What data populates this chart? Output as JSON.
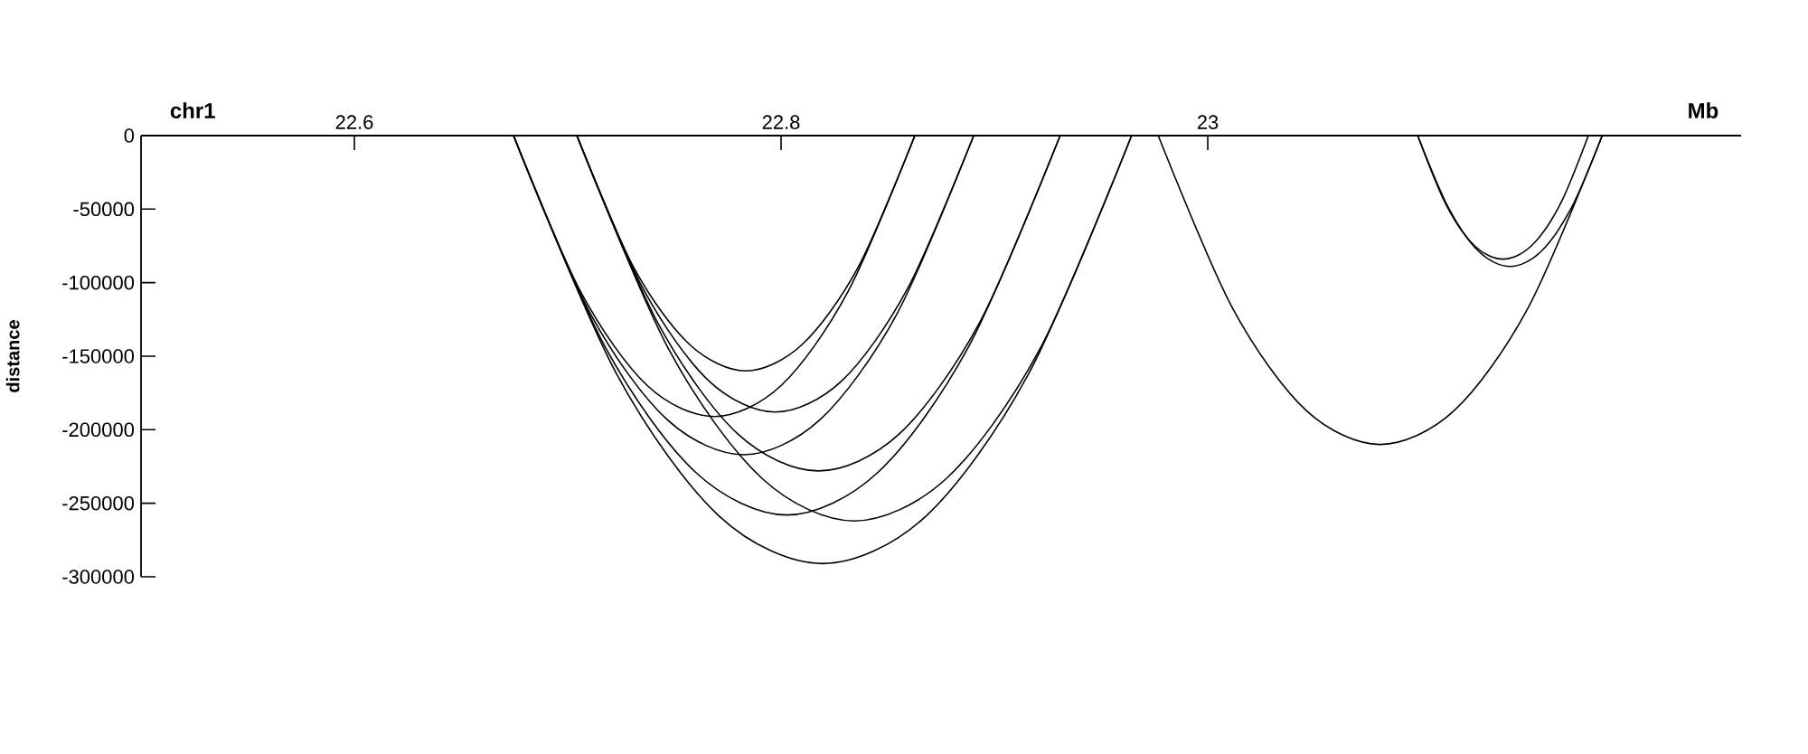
{
  "chart_data": {
    "type": "line",
    "xlabel": "Mb",
    "ylabel": "distance",
    "annotations": [
      "chr1"
    ],
    "xlim": [
      22.5,
      23.25
    ],
    "ylim": [
      -300000,
      0
    ],
    "xticks": [
      22.6,
      22.8,
      23
    ],
    "yticks": [
      0,
      -50000,
      -100000,
      -150000,
      -200000,
      -250000,
      -300000
    ],
    "marker": "none",
    "line_style": "solid",
    "series": [
      {
        "color": "#000000",
        "x": [
          22.6746,
          22.706,
          22.7373,
          22.7687,
          22.8,
          22.8314,
          22.8627
        ],
        "values": [
          0,
          -106000,
          -170000,
          -191000,
          -170000,
          -106000,
          0
        ]
      },
      {
        "color": "#000000",
        "x": [
          22.7043,
          22.7307,
          22.7571,
          22.7835,
          22.8099,
          22.8363,
          22.8627
        ],
        "values": [
          0,
          -89000,
          -142000,
          -160000,
          -142000,
          -89000,
          0
        ]
      },
      {
        "color": "#000000",
        "x": [
          22.7043,
          22.7353,
          22.7663,
          22.7973,
          22.8283,
          22.8593,
          22.8903
        ],
        "values": [
          0,
          -104000,
          -167000,
          -188000,
          -167000,
          -104000,
          0
        ]
      },
      {
        "color": "#000000",
        "x": [
          22.6746,
          22.7106,
          22.7465,
          22.7825,
          22.8184,
          22.8544,
          22.8903
        ],
        "values": [
          0,
          -121000,
          -193000,
          -217000,
          -193000,
          -121000,
          0
        ]
      },
      {
        "color": "#000000",
        "x": [
          22.7043,
          22.7421,
          22.7798,
          22.8176,
          22.8553,
          22.8931,
          22.9308
        ],
        "values": [
          0,
          -127000,
          -203000,
          -228000,
          -203000,
          -127000,
          0
        ]
      },
      {
        "color": "#000000",
        "x": [
          22.6746,
          22.7173,
          22.76,
          22.8027,
          22.8454,
          22.8881,
          22.9308
        ],
        "values": [
          0,
          -143000,
          -229000,
          -258000,
          -229000,
          -143000,
          0
        ]
      },
      {
        "color": "#000000",
        "x": [
          22.7043,
          22.7476,
          22.791,
          22.8343,
          22.8776,
          22.921,
          22.9643
        ],
        "values": [
          0,
          -146000,
          -233000,
          -262000,
          -233000,
          -146000,
          0
        ]
      },
      {
        "color": "#000000",
        "x": [
          22.6746,
          22.7229,
          22.7712,
          22.8195,
          22.8677,
          22.916,
          22.9643
        ],
        "values": [
          0,
          -162000,
          -259000,
          -291000,
          -259000,
          -162000,
          0
        ]
      },
      {
        "color": "#000000",
        "x": [
          22.9768,
          23.0115,
          23.0462,
          23.0809,
          23.1155,
          23.1502,
          23.1849
        ],
        "values": [
          0,
          -117000,
          -187000,
          -210000,
          -187000,
          -117000,
          0
        ]
      },
      {
        "color": "#000000",
        "x": [
          23.0984,
          23.1117,
          23.1251,
          23.1384,
          23.1517,
          23.1651,
          23.1784
        ],
        "values": [
          0,
          -47000,
          -75000,
          -84000,
          -75000,
          -47000,
          0
        ]
      },
      {
        "color": "#000000",
        "x": [
          23.0984,
          23.1128,
          23.1272,
          23.1417,
          23.1561,
          23.1705,
          23.1849
        ],
        "values": [
          0,
          -49000,
          -79000,
          -89000,
          -79000,
          -49000,
          0
        ]
      }
    ]
  }
}
